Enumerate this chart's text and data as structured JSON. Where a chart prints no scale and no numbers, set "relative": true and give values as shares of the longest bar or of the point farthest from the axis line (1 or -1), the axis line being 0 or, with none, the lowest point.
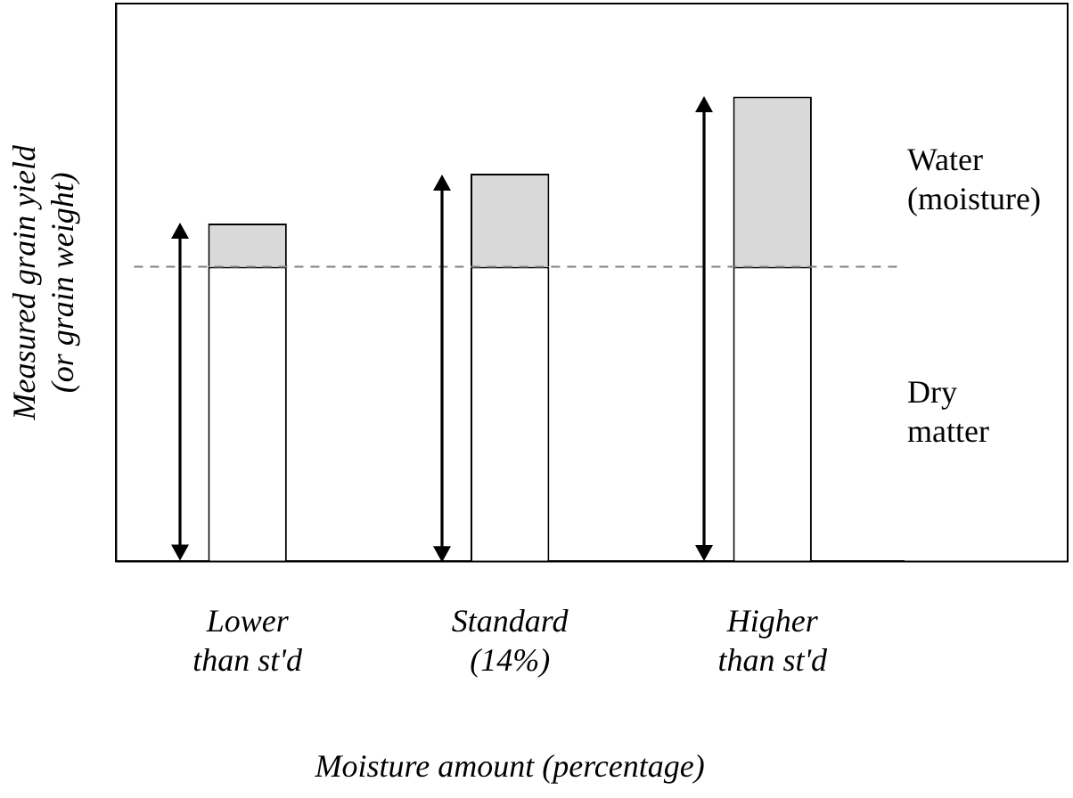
{
  "chart_data": {
    "type": "bar",
    "stacked": true,
    "relative": true,
    "xlabel": "Moisture amount (percentage)",
    "ylabel": "Measured grain yield (or grain weight)",
    "categories": [
      "Lower than st'd",
      "Standard (14%)",
      "Higher than st'd"
    ],
    "series": [
      {
        "name": "Dry matter",
        "color": "#ffffff",
        "values": [
          0.634,
          0.634,
          0.634
        ]
      },
      {
        "name": "Water (moisture)",
        "color": "#d9d9d9",
        "values": [
          0.093,
          0.2,
          0.366
        ]
      }
    ],
    "ref_lines": [
      {
        "axis": "y",
        "value": 0.634,
        "color": "#808080",
        "line_style": "dashed"
      }
    ]
  }
}
